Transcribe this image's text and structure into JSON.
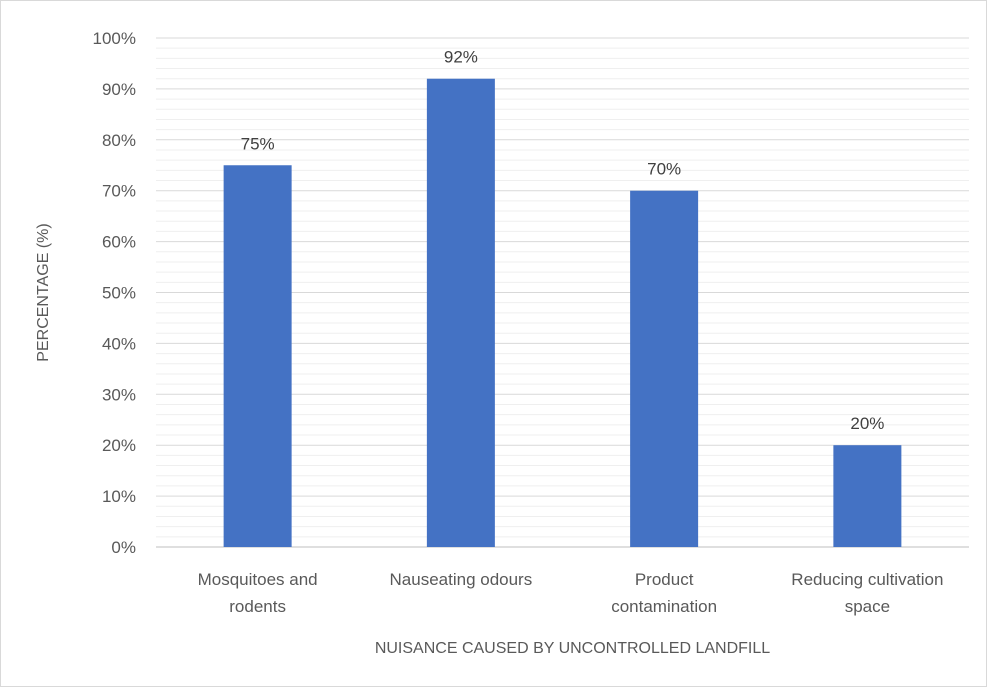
{
  "chart_data": {
    "type": "bar",
    "categories": [
      [
        "Mosquitoes and",
        "rodents"
      ],
      [
        "Nauseating odours"
      ],
      [
        "Product",
        "contamination"
      ],
      [
        "Reducing cultivation",
        "space"
      ]
    ],
    "values": [
      75,
      92,
      70,
      20
    ],
    "data_labels": [
      "75%",
      "92%",
      "70%",
      "20%"
    ],
    "title": "",
    "xlabel": "NUISANCE CAUSED BY UNCONTROLLED LANDFILL",
    "ylabel": "PERCENTAGE (%)",
    "ylim": [
      0,
      100
    ],
    "y_ticks": [
      0,
      10,
      20,
      30,
      40,
      50,
      60,
      70,
      80,
      90,
      100
    ],
    "y_tick_labels": [
      "0%",
      "10%",
      "20%",
      "30%",
      "40%",
      "50%",
      "60%",
      "70%",
      "80%",
      "90%",
      "100%"
    ],
    "grid": true,
    "minor_grid": true,
    "legend": "none",
    "bar_color": "#4472c4",
    "gridline_color": "#d9d9d9"
  }
}
